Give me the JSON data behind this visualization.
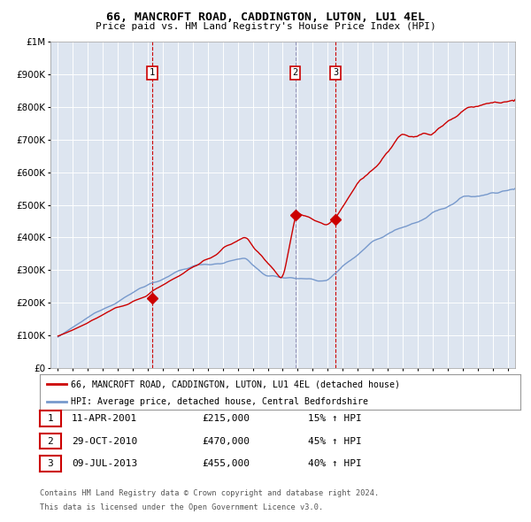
{
  "title": "66, MANCROFT ROAD, CADDINGTON, LUTON, LU1 4EL",
  "subtitle": "Price paid vs. HM Land Registry's House Price Index (HPI)",
  "legend_label_red": "66, MANCROFT ROAD, CADDINGTON, LUTON, LU1 4EL (detached house)",
  "legend_label_blue": "HPI: Average price, detached house, Central Bedfordshire",
  "footer1": "Contains HM Land Registry data © Crown copyright and database right 2024.",
  "footer2": "This data is licensed under the Open Government Licence v3.0.",
  "table": [
    {
      "num": "1",
      "date": "11-APR-2001",
      "price": "£215,000",
      "change": "15% ↑ HPI"
    },
    {
      "num": "2",
      "date": "29-OCT-2010",
      "price": "£470,000",
      "change": "45% ↑ HPI"
    },
    {
      "num": "3",
      "date": "09-JUL-2013",
      "price": "£455,000",
      "change": "40% ↑ HPI"
    }
  ],
  "sale_dates": [
    2001.278,
    2010.832,
    2013.521
  ],
  "sale_prices": [
    215000,
    470000,
    455000
  ],
  "vline_colors": [
    "#cc0000",
    "#9999bb",
    "#cc0000"
  ],
  "red_color": "#cc0000",
  "blue_color": "#7799cc",
  "bg_color": "#dde5f0",
  "grid_color": "#ffffff",
  "ylim": [
    0,
    1000000
  ],
  "yticks": [
    0,
    100000,
    200000,
    300000,
    400000,
    500000,
    600000,
    700000,
    800000,
    900000,
    1000000
  ],
  "xlim_start": 1994.5,
  "xlim_end": 2025.5
}
